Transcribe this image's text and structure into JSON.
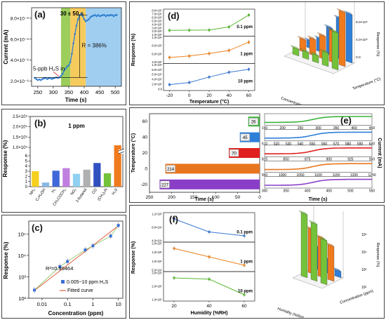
{
  "chart_data": [
    {
      "panel": "(a)",
      "type": "line",
      "xlabel": "Time (s)",
      "ylabel": "Current (mA)",
      "xlim": [
        230,
        520
      ],
      "ylim": [
        1.5e-06,
        9e-06
      ],
      "xticks": [
        "250",
        "300",
        "350",
        "400",
        "450",
        "500"
      ],
      "yticks": [
        "2.0×10⁻⁶",
        "4.0×10⁻⁶",
        "6.0×10⁻⁶",
        "8.0×10⁻⁶"
      ],
      "bands": [
        {
          "label": "30 s",
          "from": 325,
          "to": 355,
          "color": "#8cc63f"
        },
        {
          "label": "50 s",
          "from": 355,
          "to": 405,
          "color": "#f5c242"
        },
        {
          "label": "",
          "from": 405,
          "to": 520,
          "color": "#8fc6ee"
        }
      ],
      "annotations": [
        "5-ppb H₂S in",
        "R = 386%"
      ],
      "series": [
        {
          "color": "#2f7fd0",
          "x": [
            240,
            245,
            250,
            255,
            260,
            265,
            270,
            275,
            280,
            285,
            290,
            295,
            300,
            305,
            310,
            315,
            320,
            325,
            330,
            335,
            340,
            345,
            350,
            355,
            360,
            365,
            370,
            375,
            380,
            385,
            390,
            395,
            400,
            405,
            410,
            415,
            420,
            425,
            430,
            435,
            440,
            445,
            450,
            455,
            460,
            465,
            470,
            475,
            480,
            485,
            490,
            495,
            500,
            505
          ],
          "y": [
            2.3e-06,
            2.2e-06,
            2.1e-06,
            2.15e-06,
            2.1e-06,
            2.2e-06,
            2.25e-06,
            2.3e-06,
            2.2e-06,
            2.25e-06,
            2.3e-06,
            2.2e-06,
            2.25e-06,
            2.3e-06,
            2.35e-06,
            2.3e-06,
            2.35e-06,
            2.5e-06,
            2.7e-06,
            3e-06,
            3.2e-06,
            3.4e-06,
            3.5e-06,
            3.8e-06,
            4.6e-06,
            5.6e-06,
            6.5e-06,
            7.3e-06,
            7.9e-06,
            8.3e-06,
            8.4e-06,
            8.2e-06,
            7.9e-06,
            7.7e-06,
            7.8e-06,
            7.9e-06,
            8.1e-06,
            8.2e-06,
            8.25e-06,
            8.3e-06,
            8.2e-06,
            8.3e-06,
            8.2e-06,
            8.25e-06,
            8.3e-06,
            8.3e-06,
            8.2e-06,
            8.3e-06,
            8.25e-06,
            8.3e-06,
            8.3e-06,
            8.2e-06,
            8.3e-06,
            8.3e-06
          ]
        }
      ]
    },
    {
      "panel": "(b)",
      "type": "bar",
      "subtitle": "1 ppm",
      "ylabel": "Response (%)",
      "yticks": [
        "0",
        "1",
        "2",
        "3",
        "4",
        "5",
        "6",
        "1.0×10⁵",
        "1.5×10⁵",
        "2.0×10⁵",
        "2.5×10⁵"
      ],
      "categories": [
        "NH₃",
        "C₂H₅OH",
        "H₂",
        "CH₃COCH₃",
        "NO₂",
        "1-butanol",
        "CO",
        "(CH₃)₃N",
        "H₂S"
      ],
      "values": [
        3.0,
        0.8,
        3.1,
        3.6,
        2.5,
        3.3,
        4.6,
        2.6,
        110000
      ],
      "colors": [
        "#f5d020",
        "#88b8e8",
        "#4068d8",
        "#c080e0",
        "#8fd0f0",
        "#b0b0b0",
        "#3050c0",
        "#74c23a",
        "#f07a1e"
      ]
    },
    {
      "panel": "(c)",
      "type": "scatter",
      "xlabel": "Concentration (ppm)",
      "ylabel": "Response (%)",
      "xscale": "log",
      "yscale": "log",
      "xlim": [
        0.003,
        15
      ],
      "ylim": [
        100,
        400000
      ],
      "xticks": [
        "0.01",
        "0.1",
        "1",
        "10"
      ],
      "yticks": [
        "10²",
        "10³",
        "10⁴",
        "10⁵"
      ],
      "annotation": "R²=0.99464",
      "series": [
        {
          "name": "0.005~10 ppm H₂S",
          "color": "#3b6fd4",
          "x": [
            0.005,
            0.05,
            0.1,
            0.5,
            1,
            5,
            10
          ],
          "y": [
            240,
            3000,
            5200,
            18000,
            28000,
            80000,
            250000
          ]
        },
        {
          "name": "Fitted curve",
          "color": "#e06040",
          "x": [
            0.005,
            10
          ],
          "y": [
            230,
            240000
          ]
        }
      ]
    },
    {
      "panel": "(d)",
      "type": "line",
      "xlabel": "Temperature (°C)",
      "ylabel": "Response (%)",
      "x": [
        -20,
        0,
        20,
        40,
        60
      ],
      "xticks": [
        "-20",
        "0",
        "20",
        "40",
        "60"
      ],
      "subplots": [
        {
          "label": "0.1 ppm",
          "color": "#5bb832",
          "y": [
            120000.0,
            125000.0,
            130000.0,
            240000.0,
            660000.0
          ],
          "yticks": [
            "1.0×10⁵",
            "2.0×10⁵",
            "3.0×10⁵",
            "4.0×10⁵",
            "5.0×10⁵",
            "6.0×10⁵",
            "7.0×10⁵",
            "8.0×10⁵"
          ]
        },
        {
          "label": "1 ppm",
          "color": "#ee8220",
          "y": [
            220000.0,
            290000.0,
            410000.0,
            560000.0,
            960000.0
          ],
          "yticks": [
            "4.0×10⁵",
            "6.0×10⁵",
            "8.0×10⁵",
            "1.0×10⁶"
          ]
        },
        {
          "label": "10 ppm",
          "color": "#3b78d4",
          "y": [
            130000.0,
            230000.0,
            490000.0,
            720000.0,
            860000.0
          ],
          "yticks": [
            "0.0",
            "2.0×10⁵",
            "4.0×10⁵",
            "6.0×10⁵",
            "8.0×10⁵",
            "1.0×10⁶"
          ]
        }
      ],
      "bar3d": {
        "ylabel": "Response (%)",
        "xlabel": "Concentration (ppm)",
        "zlabel": "Temperature (°C)",
        "ticks": [
          "0.0",
          "4.0×10⁵",
          "8.0×10⁵"
        ]
      }
    },
    {
      "panel": "(e)",
      "type": "bar",
      "ylabel": "Temperature (°C)",
      "xlabel": "Time (s)",
      "categories": [
        "-20",
        "0",
        "20",
        "40",
        "60"
      ],
      "values": [
        227,
        214,
        70,
        45,
        26
      ],
      "colors": [
        "#8a3ec8",
        "#e8761e",
        "#e02020",
        "#2e7fd8",
        "#3bb33b"
      ],
      "xticks": [
        "250",
        "200",
        "150",
        "100",
        "50",
        "0"
      ],
      "yticks": [
        "-20",
        "0",
        "20",
        "40",
        "60"
      ],
      "right_ylabel": "Current (mA)",
      "right_xlabel": "Time (s)",
      "strips": [
        {
          "ticks": [
            "150",
            "200",
            "250",
            "300",
            "350",
            "400",
            "450"
          ]
        },
        {
          "ticks": [
            "510",
            "520",
            "530",
            "540",
            "550",
            "560",
            "570",
            "580",
            "590",
            "600"
          ]
        },
        {
          "ticks": [
            "825",
            "850",
            "875",
            "900",
            "925",
            "950"
          ]
        },
        {
          "ticks": [
            "950",
            "1000",
            "1050",
            "1100",
            "1150",
            "1200",
            "1250"
          ]
        },
        {
          "ticks": [
            "300",
            "350",
            "400",
            "450",
            "500",
            "550"
          ]
        }
      ]
    },
    {
      "panel": "(f)",
      "type": "line",
      "xlabel": "Humidity (%RH)",
      "ylabel": "Response (%)",
      "x": [
        20,
        40,
        60
      ],
      "xticks": [
        "20",
        "40",
        "60"
      ],
      "subplots": [
        {
          "label": "0.1 ppm",
          "color": "#3b78d4",
          "y": [
            100000.0,
            40000.0,
            22000.0
          ],
          "yticks": [
            "4.0×10⁴",
            "8.0×10⁴",
            "1.2×10⁵"
          ]
        },
        {
          "label": "1 ppm",
          "color": "#ee8220",
          "y": [
            150000.0,
            130000.0,
            110000.0
          ],
          "yticks": [
            "5.0×10⁴",
            "1.0×10⁵",
            "1.5×10⁵",
            "2.0×10⁵"
          ]
        },
        {
          "label": "10 ppm",
          "color": "#5bb832",
          "y": [
            250000.0,
            240000.0,
            120000.0
          ],
          "yticks": [
            "1.0×10⁵",
            "2.0×10⁵",
            "3.0×10⁵"
          ]
        }
      ],
      "bar3d": {
        "ylabel": "Response (%)",
        "xlabel": "Humidity (%RH)",
        "zlabel": "Concentration (ppm)",
        "ticks": [
          "10²",
          "10³",
          "10⁴",
          "10⁵"
        ]
      }
    }
  ]
}
